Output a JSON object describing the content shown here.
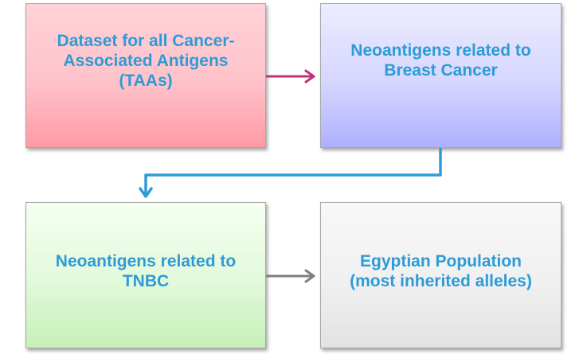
{
  "nodes": [
    {
      "id": "box1",
      "label": "Dataset for all Cancer-\nAssociated Antigens\n(TAAs)"
    },
    {
      "id": "box2",
      "label": "Neoantigens related to\nBreast Cancer"
    },
    {
      "id": "box3",
      "label": "Neoantigens related to\nTNBC"
    },
    {
      "id": "box4",
      "label": "Egyptian Population\n(most inherited alleles)"
    }
  ],
  "edges": [
    {
      "from": "box1",
      "to": "box2",
      "color": "#c0307a"
    },
    {
      "from": "box2",
      "to": "box3",
      "color": "#2e9bd6"
    },
    {
      "from": "box3",
      "to": "box4",
      "color": "#7f7f7f"
    }
  ],
  "colors": {
    "text": "#2e9bd6",
    "box1_fill": "#ffc2ca",
    "box2_fill": "#d6d6ff",
    "box3_fill": "#e2f9da",
    "box4_fill": "#f0f0f0"
  }
}
